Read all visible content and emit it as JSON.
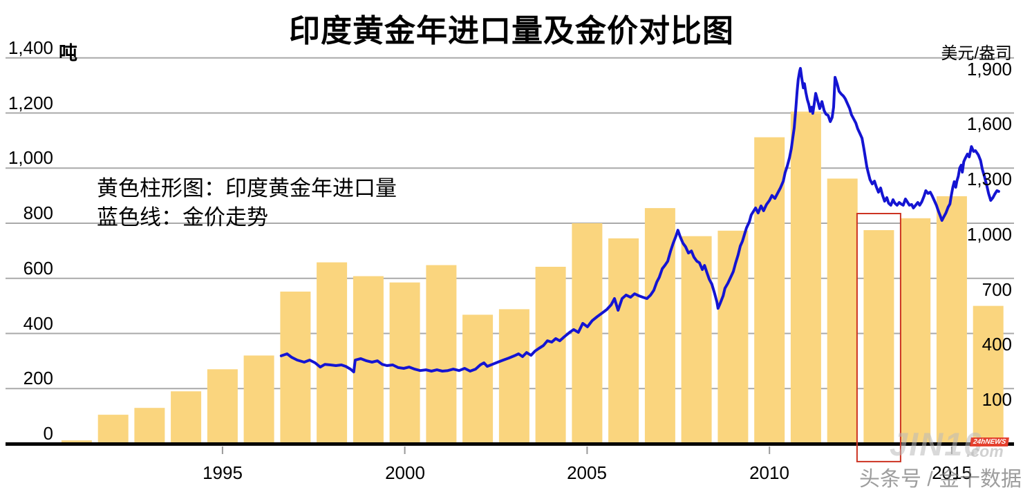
{
  "title": "印度黄金年进口量及金价对比图",
  "legend": {
    "bars_label": "黄色柱形图：印度黄金年进口量",
    "line_label": "蓝色线：金价走势"
  },
  "watermark": {
    "brand": "JIN10",
    "brand_suffix": ".com",
    "badge": "24hNEWS",
    "caption": "头条号 / 金十数据"
  },
  "chart_data": {
    "type": "combo",
    "title": "印度黄金年进口量及金价对比图",
    "grid": true,
    "left_axis": {
      "unit": "吨",
      "range": [
        0,
        1400
      ],
      "ticks": [
        0,
        200,
        400,
        600,
        800,
        1000,
        1200,
        1400
      ]
    },
    "right_axis": {
      "unit": "美元/盎司",
      "range": [
        -200,
        1900
      ],
      "ticks": [
        1900,
        1600,
        1300,
        1000,
        700,
        400,
        100
      ]
    },
    "x_axis": {
      "range_years": [
        1991,
        2016
      ],
      "ticks": [
        1995,
        2000,
        2005,
        2010,
        2015
      ]
    },
    "highlight": {
      "type": "box",
      "color": "#CC3322",
      "year": 2013,
      "tons_top": 835,
      "tons_bottom": -65
    },
    "series": [
      {
        "name": "印度黄金年进口量",
        "type": "bar",
        "color": "#FAD57E",
        "unit": "吨",
        "categories": [
          1991,
          1992,
          1993,
          1994,
          1995,
          1996,
          1997,
          1998,
          1999,
          2000,
          2001,
          2002,
          2003,
          2004,
          2005,
          2006,
          2007,
          2008,
          2009,
          2010,
          2011,
          2012,
          2013,
          2014,
          2015,
          2016
        ],
        "values": [
          12,
          105,
          130,
          190,
          270,
          320,
          552,
          658,
          608,
          585,
          648,
          468,
          488,
          642,
          800,
          745,
          855,
          753,
          773,
          1112,
          1205,
          962,
          775,
          818,
          898,
          500
        ]
      },
      {
        "name": "金价走势",
        "type": "line",
        "color": "#1414D2",
        "unit": "美元/盎司",
        "points": [
          [
            1996.61,
            278
          ],
          [
            1996.77,
            289
          ],
          [
            1996.9,
            270
          ],
          [
            1997.05,
            255
          ],
          [
            1997.24,
            244
          ],
          [
            1997.39,
            255
          ],
          [
            1997.54,
            240
          ],
          [
            1997.68,
            217
          ],
          [
            1997.81,
            232
          ],
          [
            1997.96,
            229
          ],
          [
            1998.11,
            225
          ],
          [
            1998.26,
            229
          ],
          [
            1998.38,
            221
          ],
          [
            1998.51,
            206
          ],
          [
            1998.6,
            191
          ],
          [
            1998.64,
            255
          ],
          [
            1998.79,
            263
          ],
          [
            1998.95,
            251
          ],
          [
            1999.1,
            244
          ],
          [
            1999.25,
            251
          ],
          [
            1999.38,
            232
          ],
          [
            1999.51,
            225
          ],
          [
            1999.67,
            229
          ],
          [
            1999.82,
            214
          ],
          [
            1999.97,
            210
          ],
          [
            2000.12,
            217
          ],
          [
            2000.27,
            206
          ],
          [
            2000.42,
            198
          ],
          [
            2000.58,
            202
          ],
          [
            2000.73,
            195
          ],
          [
            2000.88,
            202
          ],
          [
            2001.03,
            195
          ],
          [
            2001.18,
            198
          ],
          [
            2001.33,
            206
          ],
          [
            2001.49,
            198
          ],
          [
            2001.64,
            210
          ],
          [
            2001.79,
            195
          ],
          [
            2001.94,
            206
          ],
          [
            2002.07,
            229
          ],
          [
            2002.17,
            240
          ],
          [
            2002.26,
            221
          ],
          [
            2002.4,
            232
          ],
          [
            2002.55,
            244
          ],
          [
            2002.7,
            255
          ],
          [
            2002.85,
            266
          ],
          [
            2003.0,
            278
          ],
          [
            2003.12,
            289
          ],
          [
            2003.23,
            274
          ],
          [
            2003.34,
            296
          ],
          [
            2003.46,
            281
          ],
          [
            2003.57,
            304
          ],
          [
            2003.68,
            319
          ],
          [
            2003.8,
            334
          ],
          [
            2003.91,
            360
          ],
          [
            2004.03,
            353
          ],
          [
            2004.14,
            372
          ],
          [
            2004.25,
            360
          ],
          [
            2004.38,
            383
          ],
          [
            2004.52,
            406
          ],
          [
            2004.63,
            421
          ],
          [
            2004.76,
            406
          ],
          [
            2004.88,
            455
          ],
          [
            2005.01,
            436
          ],
          [
            2005.14,
            470
          ],
          [
            2005.28,
            492
          ],
          [
            2005.41,
            511
          ],
          [
            2005.54,
            530
          ],
          [
            2005.66,
            556
          ],
          [
            2005.75,
            590
          ],
          [
            2005.85,
            526
          ],
          [
            2005.96,
            590
          ],
          [
            2006.07,
            609
          ],
          [
            2006.19,
            597
          ],
          [
            2006.3,
            616
          ],
          [
            2006.42,
            605
          ],
          [
            2006.53,
            597
          ],
          [
            2006.64,
            590
          ],
          [
            2006.74,
            609
          ],
          [
            2006.83,
            635
          ],
          [
            2006.91,
            680
          ],
          [
            2006.98,
            706
          ],
          [
            2007.06,
            752
          ],
          [
            2007.13,
            770
          ],
          [
            2007.21,
            793
          ],
          [
            2007.29,
            849
          ],
          [
            2007.36,
            891
          ],
          [
            2007.44,
            932
          ],
          [
            2007.49,
            962
          ],
          [
            2007.55,
            928
          ],
          [
            2007.63,
            891
          ],
          [
            2007.7,
            872
          ],
          [
            2007.78,
            838
          ],
          [
            2007.86,
            849
          ],
          [
            2007.93,
            815
          ],
          [
            2008.01,
            793
          ],
          [
            2008.08,
            785
          ],
          [
            2008.16,
            748
          ],
          [
            2008.22,
            770
          ],
          [
            2008.29,
            729
          ],
          [
            2008.35,
            695
          ],
          [
            2008.42,
            669
          ],
          [
            2008.5,
            616
          ],
          [
            2008.56,
            571
          ],
          [
            2008.59,
            537
          ],
          [
            2008.65,
            564
          ],
          [
            2008.73,
            605
          ],
          [
            2008.78,
            646
          ],
          [
            2008.86,
            673
          ],
          [
            2008.93,
            703
          ],
          [
            2009.01,
            737
          ],
          [
            2009.07,
            782
          ],
          [
            2009.14,
            827
          ],
          [
            2009.2,
            876
          ],
          [
            2009.26,
            902
          ],
          [
            2009.31,
            936
          ],
          [
            2009.37,
            974
          ],
          [
            2009.45,
            1008
          ],
          [
            2009.5,
            1045
          ],
          [
            2009.56,
            1064
          ],
          [
            2009.62,
            1083
          ],
          [
            2009.69,
            1056
          ],
          [
            2009.77,
            1094
          ],
          [
            2009.84,
            1068
          ],
          [
            2009.92,
            1102
          ],
          [
            2010.0,
            1124
          ],
          [
            2010.07,
            1151
          ],
          [
            2010.15,
            1135
          ],
          [
            2010.22,
            1162
          ],
          [
            2010.3,
            1192
          ],
          [
            2010.38,
            1229
          ],
          [
            2010.43,
            1275
          ],
          [
            2010.49,
            1312
          ],
          [
            2010.55,
            1357
          ],
          [
            2010.6,
            1406
          ],
          [
            2010.64,
            1463
          ],
          [
            2010.68,
            1519
          ],
          [
            2010.72,
            1613
          ],
          [
            2010.76,
            1718
          ],
          [
            2010.79,
            1782
          ],
          [
            2010.83,
            1828
          ],
          [
            2010.85,
            1843
          ],
          [
            2010.89,
            1786
          ],
          [
            2010.93,
            1737
          ],
          [
            2010.96,
            1760
          ],
          [
            2011.0,
            1711
          ],
          [
            2011.04,
            1673
          ],
          [
            2011.08,
            1647
          ],
          [
            2011.12,
            1609
          ],
          [
            2011.16,
            1632
          ],
          [
            2011.19,
            1598
          ],
          [
            2011.23,
            1651
          ],
          [
            2011.27,
            1707
          ],
          [
            2011.33,
            1662
          ],
          [
            2011.38,
            1624
          ],
          [
            2011.44,
            1662
          ],
          [
            2011.5,
            1613
          ],
          [
            2011.55,
            1594
          ],
          [
            2011.61,
            1587
          ],
          [
            2011.67,
            1553
          ],
          [
            2011.72,
            1576
          ],
          [
            2011.76,
            1632
          ],
          [
            2011.8,
            1794
          ],
          [
            2011.86,
            1756
          ],
          [
            2011.91,
            1718
          ],
          [
            2011.97,
            1703
          ],
          [
            2012.03,
            1692
          ],
          [
            2012.08,
            1677
          ],
          [
            2012.14,
            1651
          ],
          [
            2012.2,
            1624
          ],
          [
            2012.25,
            1591
          ],
          [
            2012.31,
            1568
          ],
          [
            2012.37,
            1545
          ],
          [
            2012.42,
            1515
          ],
          [
            2012.48,
            1489
          ],
          [
            2012.54,
            1463
          ],
          [
            2012.59,
            1406
          ],
          [
            2012.63,
            1357
          ],
          [
            2012.67,
            1308
          ],
          [
            2012.71,
            1275
          ],
          [
            2012.76,
            1237
          ],
          [
            2012.82,
            1214
          ],
          [
            2012.88,
            1229
          ],
          [
            2012.93,
            1199
          ],
          [
            2012.99,
            1169
          ],
          [
            2013.05,
            1192
          ],
          [
            2013.1,
            1154
          ],
          [
            2013.16,
            1120
          ],
          [
            2013.22,
            1139
          ],
          [
            2013.27,
            1109
          ],
          [
            2013.33,
            1098
          ],
          [
            2013.39,
            1128
          ],
          [
            2013.44,
            1109
          ],
          [
            2013.5,
            1098
          ],
          [
            2013.56,
            1113
          ],
          [
            2013.61,
            1105
          ],
          [
            2013.67,
            1098
          ],
          [
            2013.73,
            1132
          ],
          [
            2013.78,
            1117
          ],
          [
            2013.84,
            1098
          ],
          [
            2013.9,
            1102
          ],
          [
            2013.95,
            1083
          ],
          [
            2014.01,
            1098
          ],
          [
            2014.07,
            1113
          ],
          [
            2014.12,
            1098
          ],
          [
            2014.18,
            1117
          ],
          [
            2014.24,
            1147
          ],
          [
            2014.29,
            1177
          ],
          [
            2014.35,
            1162
          ],
          [
            2014.41,
            1169
          ],
          [
            2014.46,
            1151
          ],
          [
            2014.52,
            1124
          ],
          [
            2014.58,
            1098
          ],
          [
            2014.63,
            1068
          ],
          [
            2014.69,
            1038
          ],
          [
            2014.73,
            1015
          ],
          [
            2014.78,
            1034
          ],
          [
            2014.84,
            1056
          ],
          [
            2014.9,
            1087
          ],
          [
            2014.95,
            1105
          ],
          [
            2014.99,
            1154
          ],
          [
            2015.03,
            1196
          ],
          [
            2015.07,
            1226
          ],
          [
            2015.11,
            1196
          ],
          [
            2015.14,
            1229
          ],
          [
            2015.18,
            1256
          ],
          [
            2015.22,
            1301
          ],
          [
            2015.26,
            1316
          ],
          [
            2015.29,
            1278
          ],
          [
            2015.33,
            1335
          ],
          [
            2015.37,
            1353
          ],
          [
            2015.43,
            1376
          ],
          [
            2015.48,
            1361
          ],
          [
            2015.54,
            1417
          ],
          [
            2015.6,
            1391
          ],
          [
            2015.65,
            1395
          ],
          [
            2015.73,
            1372
          ],
          [
            2015.79,
            1342
          ],
          [
            2015.84,
            1293
          ],
          [
            2015.9,
            1252
          ],
          [
            2015.96,
            1207
          ],
          [
            2016.01,
            1162
          ],
          [
            2016.07,
            1124
          ],
          [
            2016.13,
            1139
          ],
          [
            2016.18,
            1158
          ],
          [
            2016.24,
            1177
          ],
          [
            2016.29,
            1173
          ]
        ]
      }
    ]
  }
}
